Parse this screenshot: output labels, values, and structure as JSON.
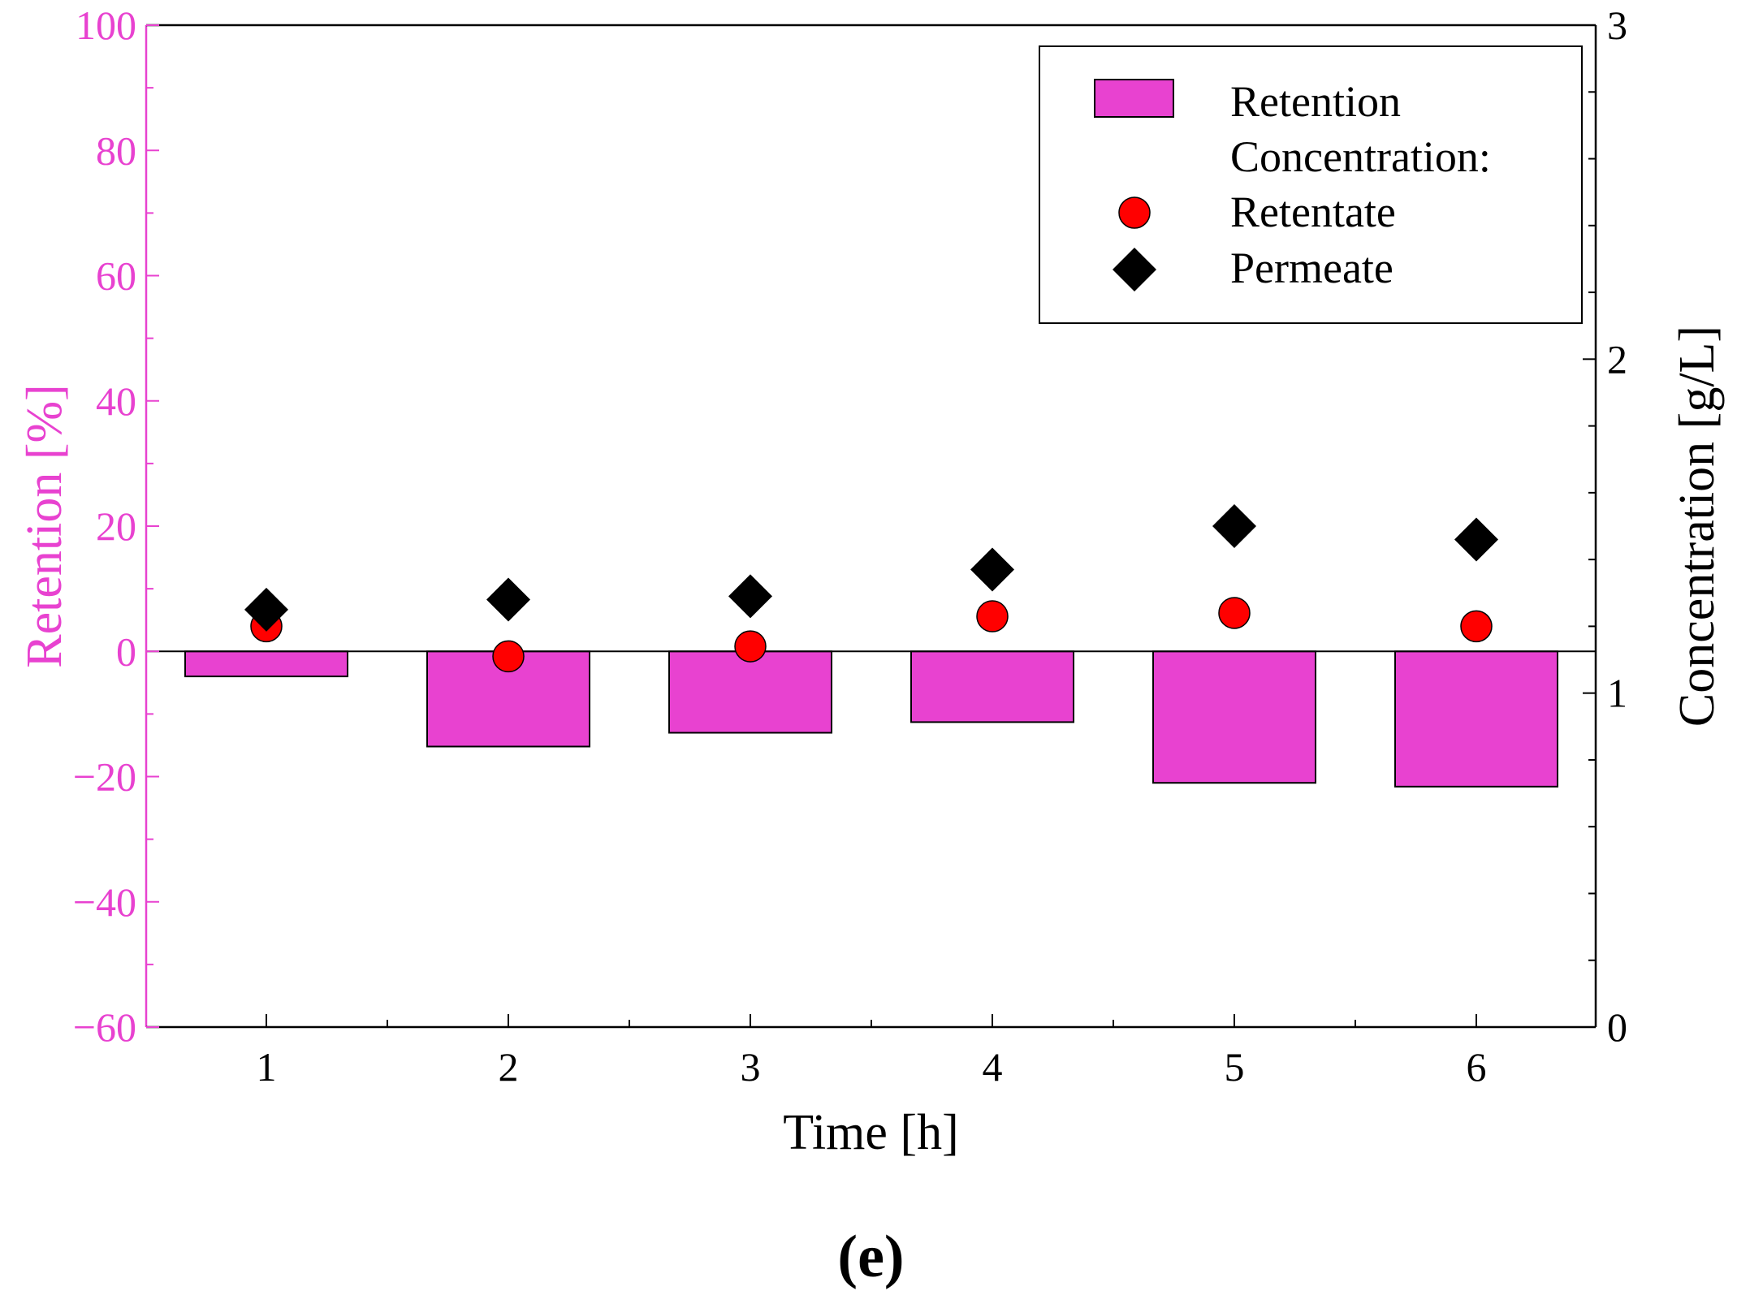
{
  "panel_label": "(e)",
  "chart_data": {
    "type": "bar",
    "categories": [
      "1",
      "2",
      "3",
      "4",
      "5",
      "6"
    ],
    "xlabel": "Time [h]",
    "ylabel": "Retention [%]",
    "ylabel_right": "Concentration [g/L]",
    "ylim": [
      -60,
      100
    ],
    "ylim_right": [
      0,
      3
    ],
    "yticks": [
      "100",
      "80",
      "60",
      "40",
      "20",
      "0",
      "−20",
      "−40",
      "−60"
    ],
    "yticks_right": [
      "3",
      "2",
      "1",
      "0"
    ],
    "series": [
      {
        "name": "Retention",
        "kind": "bar",
        "axis": "left",
        "color": "#E842D0",
        "values": [
          -4,
          -15.2,
          -13,
          -11.3,
          -21,
          -21.6
        ]
      },
      {
        "name": "Retentate",
        "kind": "scatter",
        "marker": "circle",
        "axis": "right",
        "color": "#FF0000",
        "values": [
          1.2,
          1.11,
          1.14,
          1.23,
          1.24,
          1.2
        ]
      },
      {
        "name": "Permeate",
        "kind": "scatter",
        "marker": "diamond",
        "axis": "right",
        "color": "#000000",
        "values": [
          1.25,
          1.28,
          1.29,
          1.37,
          1.5,
          1.46
        ]
      }
    ],
    "legend": {
      "position": "top-right",
      "entries": [
        "Retention",
        "Concentration:",
        "Retentate",
        "Permeate"
      ]
    },
    "colors": {
      "left_axis": "#E842D0",
      "right_axis": "#000000",
      "bar_fill": "#E842D0",
      "retentate_fill": "#FF0000",
      "permeate_fill": "#000000"
    }
  }
}
